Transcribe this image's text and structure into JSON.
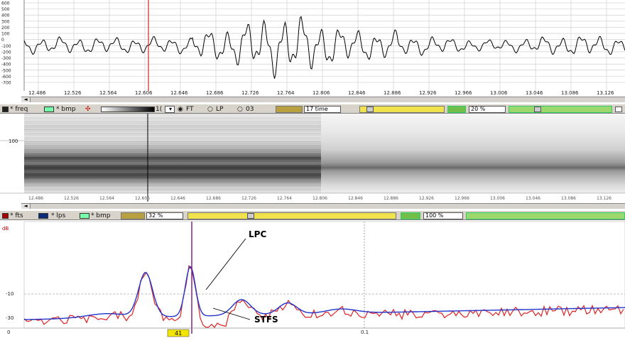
{
  "waveform": {
    "y_ticks": [
      "600",
      "500",
      "400",
      "300",
      "200",
      "100",
      "0",
      "-100",
      "-200",
      "-300",
      "-400",
      "-500",
      "-600",
      "-700"
    ],
    "x_ticks": [
      "12.486",
      "12.526",
      "12.564",
      "12.606",
      "12.646",
      "12.686",
      "12.726",
      "12.764",
      "12.806",
      "12.846",
      "12.886",
      "12.926",
      "12.966",
      "13.006",
      "13.046",
      "13.086",
      "13.126"
    ]
  },
  "toolbar1": {
    "freq_label": "* freq",
    "bmp_label": "* bmp",
    "contrast_value": "1(",
    "radio_ft": "FT",
    "radio_lp": "LP",
    "radio_03": "03",
    "time_value": "17 time",
    "zoom_value": "20 %"
  },
  "spectrogram": {
    "y_tick": "100",
    "x_ticks": [
      "12.486",
      "12.526",
      "12.564",
      "12.606",
      "12.646",
      "12.686",
      "12.726",
      "12.764",
      "12.806",
      "12.846",
      "12.886",
      "12.926",
      "12.966",
      "13.006",
      "13.046",
      "13.086",
      "13.126"
    ]
  },
  "toolbar2": {
    "fts_label": "* fts",
    "lps_label": "* lps",
    "bmp_label": "* bmp",
    "scale_value": "32 %",
    "zoom_value": "100 %"
  },
  "lpc_panel": {
    "corner_label": "dB",
    "y_tick_mid": "-10",
    "y_tick_low": "-30",
    "x_tick_left": "0",
    "x_tick_mid": "0.1",
    "cursor_value": "41",
    "annotation_lpc": "LPC",
    "annotation_stfs": "STFS"
  },
  "colors": {
    "toolbar": "#d8d4cc",
    "cursor_red": "#e02020",
    "lpc_blue": "#2233cc",
    "stfs_red": "#dd2222",
    "cursor_purple": "#7a1a7a",
    "highlight_yellow": "#f2e600"
  }
}
